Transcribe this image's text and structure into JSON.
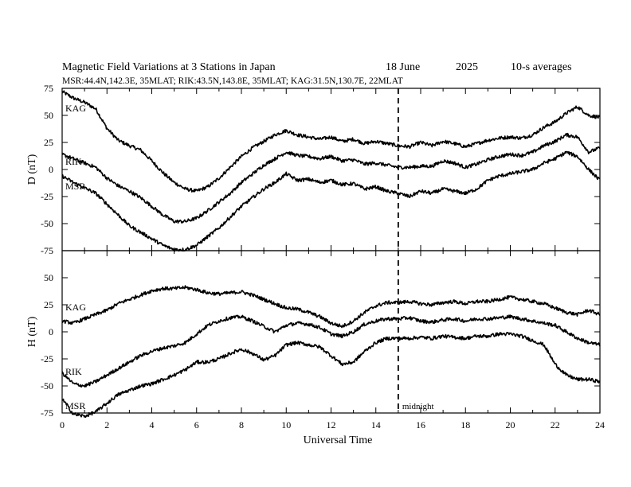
{
  "header": {
    "title": "Magnetic Field Variations at 3 Stations in Japan",
    "date": "18 June",
    "year": "2025",
    "averaging": "10-s averages",
    "stations_line": "MSR:44.4N,142.3E, 35MLAT;  RIK:43.5N,143.8E, 35MLAT;  KAG:31.5N,130.7E, 22MLAT"
  },
  "chart_data": [
    {
      "type": "line",
      "ylabel": "D (nT)",
      "ylim": [
        -75,
        75
      ],
      "yticks": [
        "75",
        "50",
        "25",
        "0",
        "-25",
        "-50",
        "-75"
      ],
      "xlim": [
        0,
        24
      ],
      "series": [
        {
          "name": "KAG",
          "x": [
            0,
            0.5,
            1,
            1.5,
            2,
            2.5,
            3,
            3.5,
            4,
            4.5,
            5,
            5.5,
            6,
            6.5,
            7,
            7.5,
            8,
            8.5,
            9,
            9.5,
            10,
            10.5,
            11,
            11.5,
            12,
            12.5,
            13,
            13.5,
            14,
            14.5,
            15,
            15.5,
            16,
            16.5,
            17,
            17.5,
            18,
            18.5,
            19,
            19.5,
            20,
            20.5,
            21,
            21.5,
            22,
            22.5,
            23,
            23.5,
            24
          ],
          "y": [
            72,
            66,
            62,
            56,
            38,
            27,
            22,
            18,
            8,
            -3,
            -12,
            -18,
            -20,
            -16,
            -8,
            2,
            12,
            20,
            26,
            32,
            36,
            32,
            30,
            28,
            30,
            26,
            28,
            24,
            26,
            24,
            22,
            21,
            25,
            22,
            26,
            24,
            21,
            24,
            27,
            29,
            30,
            29,
            32,
            39,
            44,
            52,
            58,
            50,
            48
          ]
        },
        {
          "name": "RIK",
          "x": [
            0,
            0.5,
            1,
            1.5,
            2,
            2.5,
            3,
            3.5,
            4,
            4.5,
            5,
            5.5,
            6,
            6.5,
            7,
            7.5,
            8,
            8.5,
            9,
            9.5,
            10,
            10.5,
            11,
            11.5,
            12,
            12.5,
            13,
            13.5,
            14,
            14.5,
            15,
            15.5,
            16,
            16.5,
            17,
            17.5,
            18,
            18.5,
            19,
            19.5,
            20,
            20.5,
            21,
            21.5,
            22,
            22.5,
            23,
            23.5,
            24
          ],
          "y": [
            14,
            10,
            6,
            2,
            -8,
            -15,
            -20,
            -26,
            -34,
            -42,
            -48,
            -48,
            -45,
            -38,
            -30,
            -22,
            -12,
            -4,
            4,
            10,
            16,
            13,
            12,
            10,
            12,
            8,
            9,
            5,
            6,
            4,
            2,
            2,
            3,
            3,
            8,
            6,
            2,
            5,
            9,
            12,
            14,
            13,
            16,
            22,
            26,
            32,
            30,
            16,
            20
          ]
        },
        {
          "name": "MSR",
          "x": [
            0,
            0.5,
            1,
            1.5,
            2,
            2.5,
            3,
            3.5,
            4,
            4.5,
            5,
            5.5,
            6,
            6.5,
            7,
            7.5,
            8,
            8.5,
            9,
            9.5,
            10,
            10.5,
            11,
            11.5,
            12,
            12.5,
            13,
            13.5,
            14,
            14.5,
            15,
            15.5,
            16,
            16.5,
            17,
            17.5,
            18,
            18.5,
            19,
            19.5,
            20,
            20.5,
            21,
            21.5,
            22,
            22.5,
            23,
            23.5,
            24
          ],
          "y": [
            -6,
            -12,
            -17,
            -22,
            -32,
            -42,
            -52,
            -58,
            -64,
            -70,
            -74,
            -74,
            -70,
            -62,
            -54,
            -44,
            -34,
            -26,
            -18,
            -12,
            -4,
            -10,
            -9,
            -12,
            -10,
            -14,
            -13,
            -18,
            -16,
            -20,
            -22,
            -25,
            -20,
            -22,
            -18,
            -20,
            -22,
            -18,
            -10,
            -6,
            -4,
            -2,
            0,
            6,
            10,
            16,
            12,
            0,
            -10
          ]
        }
      ]
    },
    {
      "type": "line",
      "ylabel": "H (nT)",
      "ylim": [
        -75,
        75
      ],
      "yticks": [
        "",
        "50",
        "25",
        "0",
        "-25",
        "-50",
        "-75"
      ],
      "xlabel": "Universal Time",
      "xlim": [
        0,
        24
      ],
      "xticks": [
        "0",
        "2",
        "4",
        "6",
        "8",
        "10",
        "12",
        "14",
        "16",
        "18",
        "20",
        "22",
        "24"
      ],
      "annotation": "midnight",
      "midnight_ut": 15,
      "series": [
        {
          "name": "KAG",
          "x": [
            0,
            0.5,
            1,
            1.5,
            2,
            2.5,
            3,
            3.5,
            4,
            4.5,
            5,
            5.5,
            6,
            6.5,
            7,
            7.5,
            8,
            8.5,
            9,
            9.5,
            10,
            10.5,
            11,
            11.5,
            12,
            12.5,
            13,
            13.5,
            14,
            14.5,
            15,
            15.5,
            16,
            16.5,
            17,
            17.5,
            18,
            18.5,
            19,
            19.5,
            20,
            20.5,
            21,
            21.5,
            22,
            22.5,
            23,
            23.5,
            24
          ],
          "y": [
            10,
            8,
            12,
            16,
            20,
            26,
            30,
            34,
            38,
            40,
            40,
            41,
            39,
            36,
            35,
            36,
            37,
            34,
            30,
            26,
            22,
            21,
            18,
            14,
            8,
            5,
            10,
            18,
            24,
            27,
            27,
            28,
            26,
            25,
            27,
            28,
            26,
            28,
            28,
            30,
            32,
            30,
            28,
            26,
            22,
            18,
            16,
            20,
            16
          ]
        },
        {
          "name": "RIK",
          "x": [
            0,
            0.5,
            1,
            1.5,
            2,
            2.5,
            3,
            3.5,
            4,
            4.5,
            5,
            5.5,
            6,
            6.5,
            7,
            7.5,
            8,
            8.5,
            9,
            9.5,
            10,
            10.5,
            11,
            11.5,
            12,
            12.5,
            13,
            13.5,
            14,
            14.5,
            15,
            15.5,
            16,
            16.5,
            17,
            17.5,
            18,
            18.5,
            19,
            19.5,
            20,
            20.5,
            21,
            21.5,
            22,
            22.5,
            23,
            23.5,
            24
          ],
          "y": [
            -38,
            -48,
            -50,
            -46,
            -40,
            -34,
            -28,
            -22,
            -18,
            -15,
            -13,
            -10,
            -2,
            6,
            10,
            13,
            14,
            10,
            5,
            0,
            6,
            8,
            7,
            4,
            -2,
            -4,
            0,
            7,
            10,
            12,
            12,
            13,
            10,
            9,
            11,
            12,
            10,
            12,
            12,
            13,
            14,
            12,
            10,
            8,
            6,
            0,
            -6,
            -10,
            -12
          ]
        },
        {
          "name": "MSR",
          "x": [
            0,
            0.5,
            1,
            1.5,
            2,
            2.5,
            3,
            3.5,
            4,
            4.5,
            5,
            5.5,
            6,
            6.5,
            7,
            7.5,
            8,
            8.5,
            9,
            9.5,
            10,
            10.5,
            11,
            11.5,
            12,
            12.5,
            13,
            13.5,
            14,
            14.5,
            15,
            15.5,
            16,
            16.5,
            17,
            17.5,
            18,
            18.5,
            19,
            19.5,
            20,
            20.5,
            21,
            21.5,
            22,
            22.5,
            23,
            23.5,
            24
          ],
          "y": [
            -62,
            -76,
            -78,
            -74,
            -66,
            -58,
            -54,
            -50,
            -48,
            -44,
            -40,
            -35,
            -28,
            -28,
            -25,
            -20,
            -16,
            -20,
            -26,
            -22,
            -12,
            -10,
            -12,
            -14,
            -22,
            -30,
            -28,
            -18,
            -10,
            -6,
            -6,
            -6,
            -5,
            -6,
            -4,
            -5,
            -6,
            -4,
            -4,
            -2,
            -2,
            -4,
            -8,
            -12,
            -30,
            -40,
            -44,
            -44,
            -46
          ]
        }
      ]
    }
  ]
}
